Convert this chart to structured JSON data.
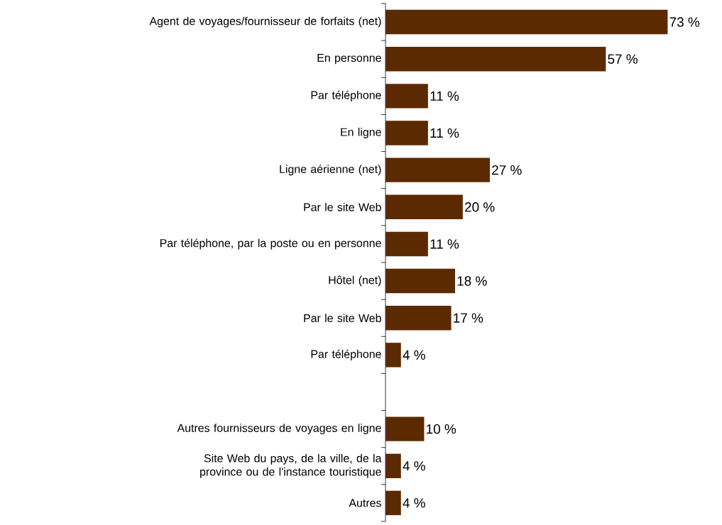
{
  "chart_data": {
    "type": "bar",
    "orientation": "horizontal",
    "color": "#5c2a00",
    "categories": [
      "Agent de voyages/fournisseur de forfaits (net)",
      "En personne",
      "Par téléphone",
      "En ligne",
      "Ligne aérienne (net)",
      "Par le site Web",
      "Par téléphone, par la poste ou en personne",
      "Hôtel (net)",
      "Par le site Web",
      "Par téléphone",
      null,
      "Autres fournisseurs de voyages en ligne",
      "Site Web du pays, de la ville, de la province ou de l'instance touristique",
      "Autres"
    ],
    "values": [
      73,
      57,
      11,
      11,
      27,
      20,
      11,
      18,
      17,
      4,
      null,
      10,
      4,
      4
    ],
    "value_labels": [
      "73 %",
      "57 %",
      "11 %",
      "11 %",
      "27 %",
      "20 %",
      "11 %",
      "18 %",
      "17 %",
      "4 %",
      null,
      "10 %",
      "4 %",
      "4 %"
    ]
  }
}
